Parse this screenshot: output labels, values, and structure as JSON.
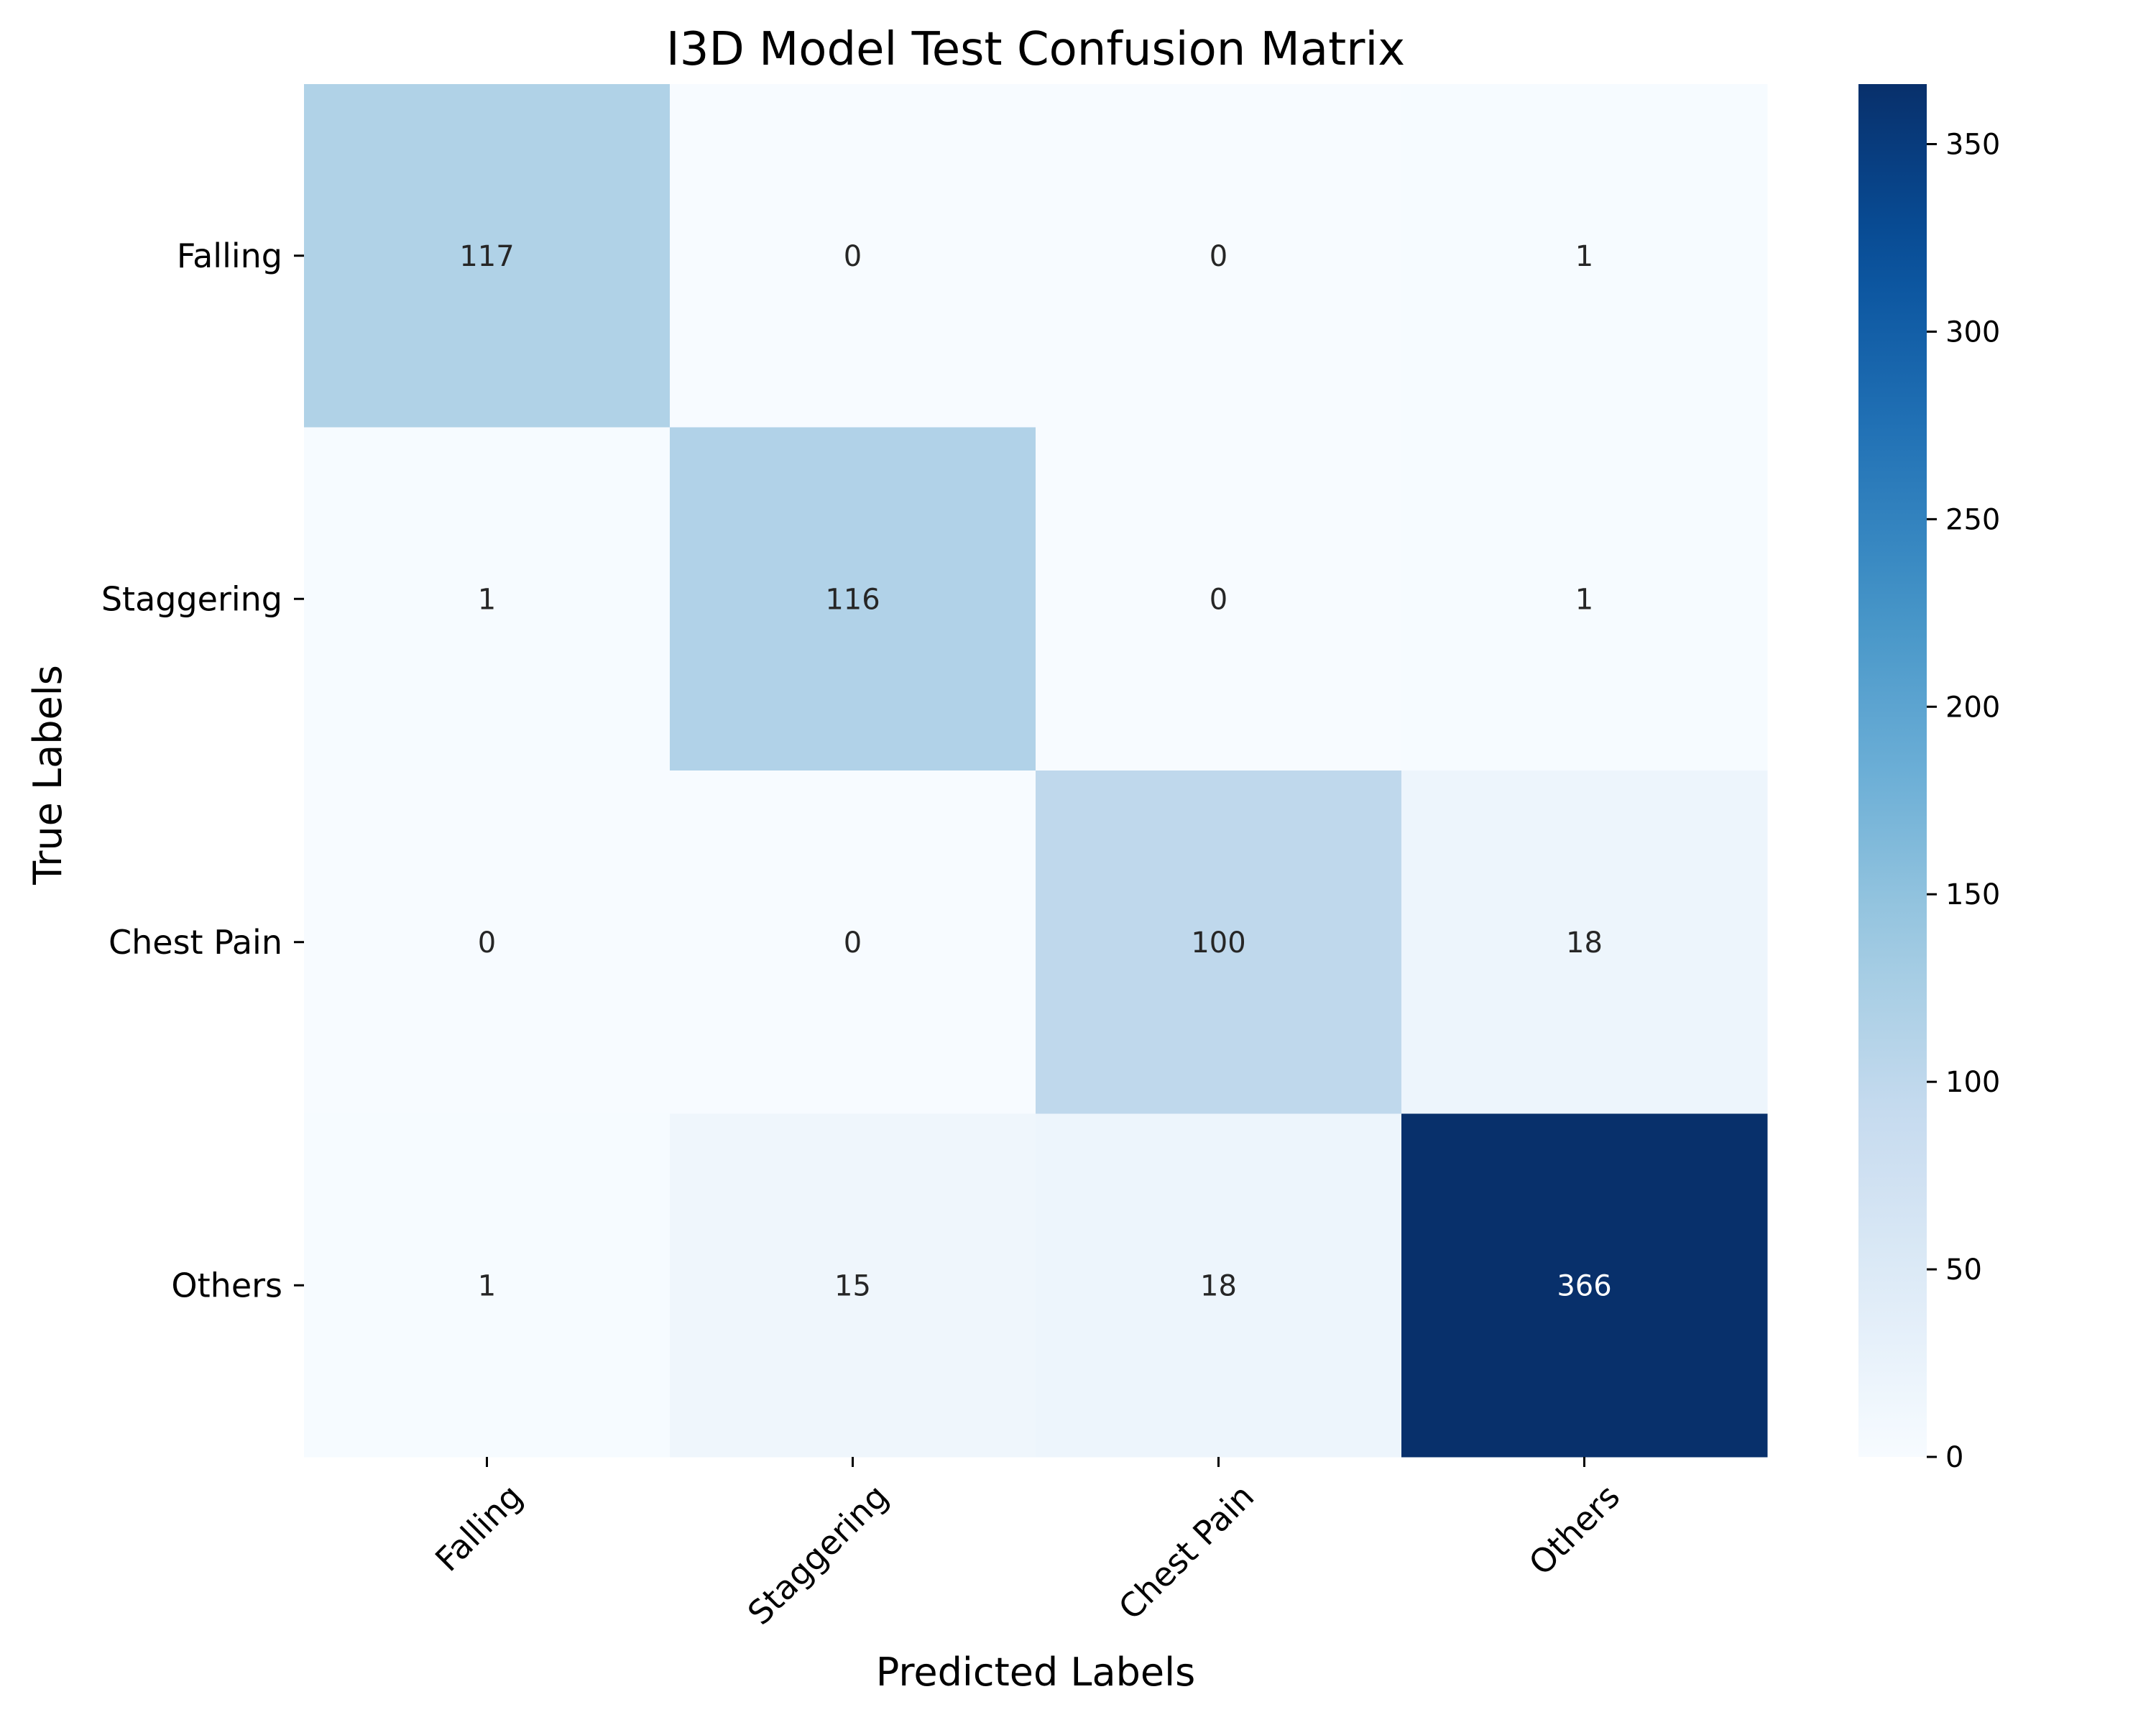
{
  "chart_data": {
    "type": "heatmap",
    "title": "I3D Model Test Confusion Matrix",
    "xlabel": "Predicted Labels",
    "ylabel": "True Labels",
    "x_categories": [
      "Falling",
      "Staggering",
      "Chest Pain",
      "Others"
    ],
    "y_categories": [
      "Falling",
      "Staggering",
      "Chest Pain",
      "Others"
    ],
    "values": [
      [
        117,
        0,
        0,
        1
      ],
      [
        1,
        116,
        0,
        1
      ],
      [
        0,
        0,
        100,
        18
      ],
      [
        1,
        15,
        18,
        366
      ]
    ],
    "colormap": "Blues",
    "color_range": [
      0,
      366
    ],
    "colorbar_ticks": [
      0,
      50,
      100,
      150,
      200,
      250,
      300,
      350
    ],
    "light_text_color": "#ffffff",
    "dark_text_color": "#262626"
  }
}
